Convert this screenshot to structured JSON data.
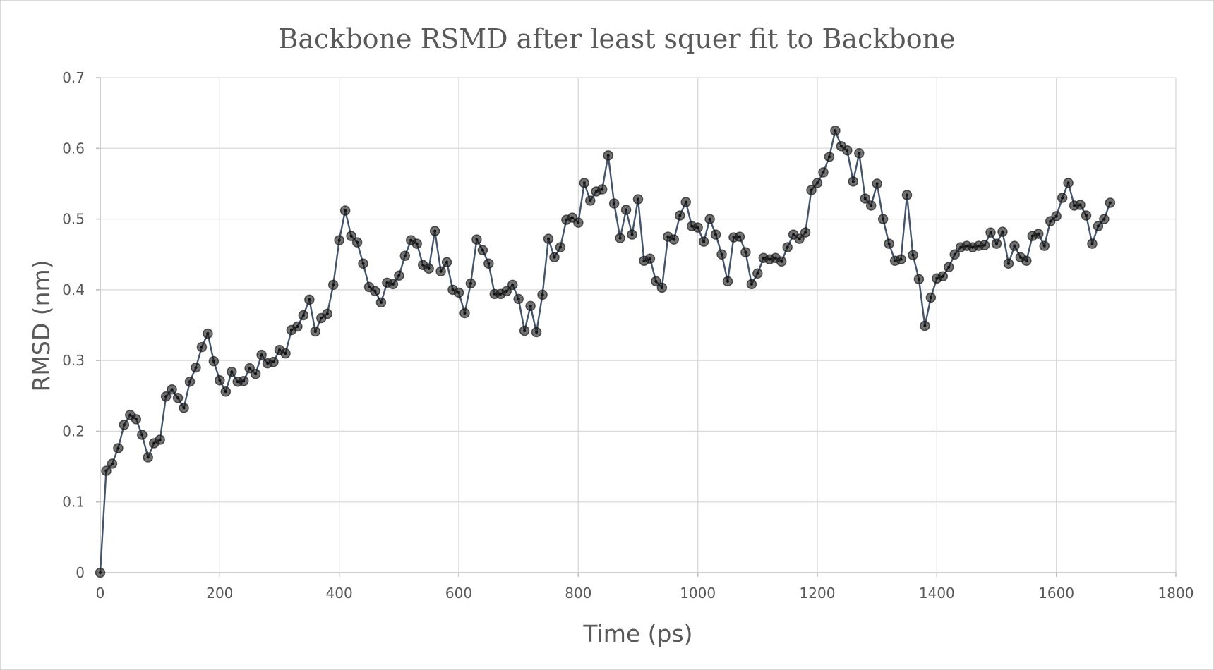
{
  "chart_data": {
    "type": "line",
    "title": "Backbone RSMD after least squer fit to Backbone",
    "xlabel": "Time (ps)",
    "ylabel": "RMSD (nm)",
    "xlim": [
      0,
      1800
    ],
    "ylim": [
      0,
      0.7
    ],
    "xticks": [
      0,
      200,
      400,
      600,
      800,
      1000,
      1200,
      1400,
      1600,
      1800
    ],
    "yticks": [
      0,
      0.1,
      0.2,
      0.3,
      0.4,
      0.5,
      0.6,
      0.7
    ],
    "xtick_labels": [
      "0",
      "200",
      "400",
      "600",
      "800",
      "1000",
      "1200",
      "1400",
      "1600",
      "1800"
    ],
    "ytick_labels": [
      "0",
      "0.1",
      "0.2",
      "0.3",
      "0.4",
      "0.5",
      "0.6",
      "0.7"
    ],
    "grid": true,
    "legend": "none",
    "colors": {
      "line": "#44546a",
      "marker": "#1a1a1a",
      "grid": "#d9d9d9",
      "text": "#595959"
    },
    "series": [
      {
        "x": [
          0,
          10,
          20,
          30,
          40,
          50,
          60,
          70,
          80,
          90,
          100,
          110,
          120,
          130,
          140,
          150,
          160,
          170,
          180,
          190,
          200,
          210,
          220,
          230,
          240,
          250,
          260,
          270,
          280,
          290,
          300,
          310,
          320,
          330,
          340,
          350,
          360,
          370,
          380,
          390,
          400,
          410,
          420,
          430,
          440,
          450,
          460,
          470,
          480,
          490,
          500,
          510,
          520,
          530,
          540,
          550,
          560,
          570,
          580,
          590,
          600,
          610,
          620,
          630,
          640,
          650,
          660,
          670,
          680,
          690,
          700,
          710,
          720,
          730,
          740,
          750,
          760,
          770,
          780,
          790,
          800,
          810,
          820,
          830,
          840,
          850,
          860,
          870,
          880,
          890,
          900,
          910,
          920,
          930,
          940,
          950,
          960,
          970,
          980,
          990,
          1000,
          1010,
          1020,
          1030,
          1040,
          1050,
          1060,
          1070,
          1080,
          1090,
          1100,
          1110,
          1120,
          1130,
          1140,
          1150,
          1160,
          1170,
          1180,
          1190,
          1200,
          1210,
          1220,
          1230,
          1240,
          1250,
          1260,
          1270,
          1280,
          1290,
          1300,
          1310,
          1320,
          1330,
          1340,
          1350,
          1360,
          1370,
          1380,
          1390,
          1400,
          1410,
          1420,
          1430,
          1440,
          1450,
          1460,
          1470,
          1480,
          1490,
          1500,
          1510,
          1520,
          1530,
          1540,
          1550,
          1560,
          1570,
          1580,
          1590,
          1600,
          1610,
          1620,
          1630,
          1640,
          1650,
          1660,
          1670,
          1680,
          1690
        ],
        "values": [
          0.0,
          0.144,
          0.154,
          0.176,
          0.209,
          0.223,
          0.217,
          0.195,
          0.163,
          0.183,
          0.188,
          0.249,
          0.259,
          0.247,
          0.233,
          0.27,
          0.29,
          0.319,
          0.338,
          0.299,
          0.272,
          0.256,
          0.284,
          0.27,
          0.271,
          0.289,
          0.281,
          0.308,
          0.296,
          0.298,
          0.315,
          0.31,
          0.343,
          0.348,
          0.364,
          0.386,
          0.341,
          0.36,
          0.366,
          0.407,
          0.47,
          0.512,
          0.476,
          0.467,
          0.437,
          0.404,
          0.398,
          0.382,
          0.41,
          0.408,
          0.42,
          0.448,
          0.47,
          0.465,
          0.435,
          0.43,
          0.483,
          0.426,
          0.439,
          0.4,
          0.396,
          0.367,
          0.409,
          0.471,
          0.456,
          0.437,
          0.394,
          0.394,
          0.398,
          0.407,
          0.387,
          0.342,
          0.377,
          0.34,
          0.393,
          0.472,
          0.446,
          0.46,
          0.499,
          0.502,
          0.495,
          0.551,
          0.526,
          0.539,
          0.542,
          0.59,
          0.522,
          0.473,
          0.513,
          0.478,
          0.528,
          0.441,
          0.444,
          0.412,
          0.403,
          0.475,
          0.471,
          0.505,
          0.524,
          0.49,
          0.488,
          0.468,
          0.5,
          0.478,
          0.45,
          0.412,
          0.474,
          0.475,
          0.453,
          0.408,
          0.423,
          0.445,
          0.443,
          0.445,
          0.44,
          0.46,
          0.478,
          0.472,
          0.481,
          0.541,
          0.551,
          0.566,
          0.588,
          0.625,
          0.603,
          0.597,
          0.553,
          0.593,
          0.529,
          0.519,
          0.55,
          0.5,
          0.465,
          0.441,
          0.443,
          0.534,
          0.449,
          0.415,
          0.349,
          0.389,
          0.416,
          0.419,
          0.432,
          0.45,
          0.46,
          0.462,
          0.46,
          0.462,
          0.463,
          0.481,
          0.465,
          0.482,
          0.437,
          0.462,
          0.446,
          0.441,
          0.476,
          0.479,
          0.462,
          0.497,
          0.504,
          0.53,
          0.551,
          0.519,
          0.52,
          0.505,
          0.465,
          0.49,
          0.5,
          0.523
        ]
      }
    ]
  }
}
